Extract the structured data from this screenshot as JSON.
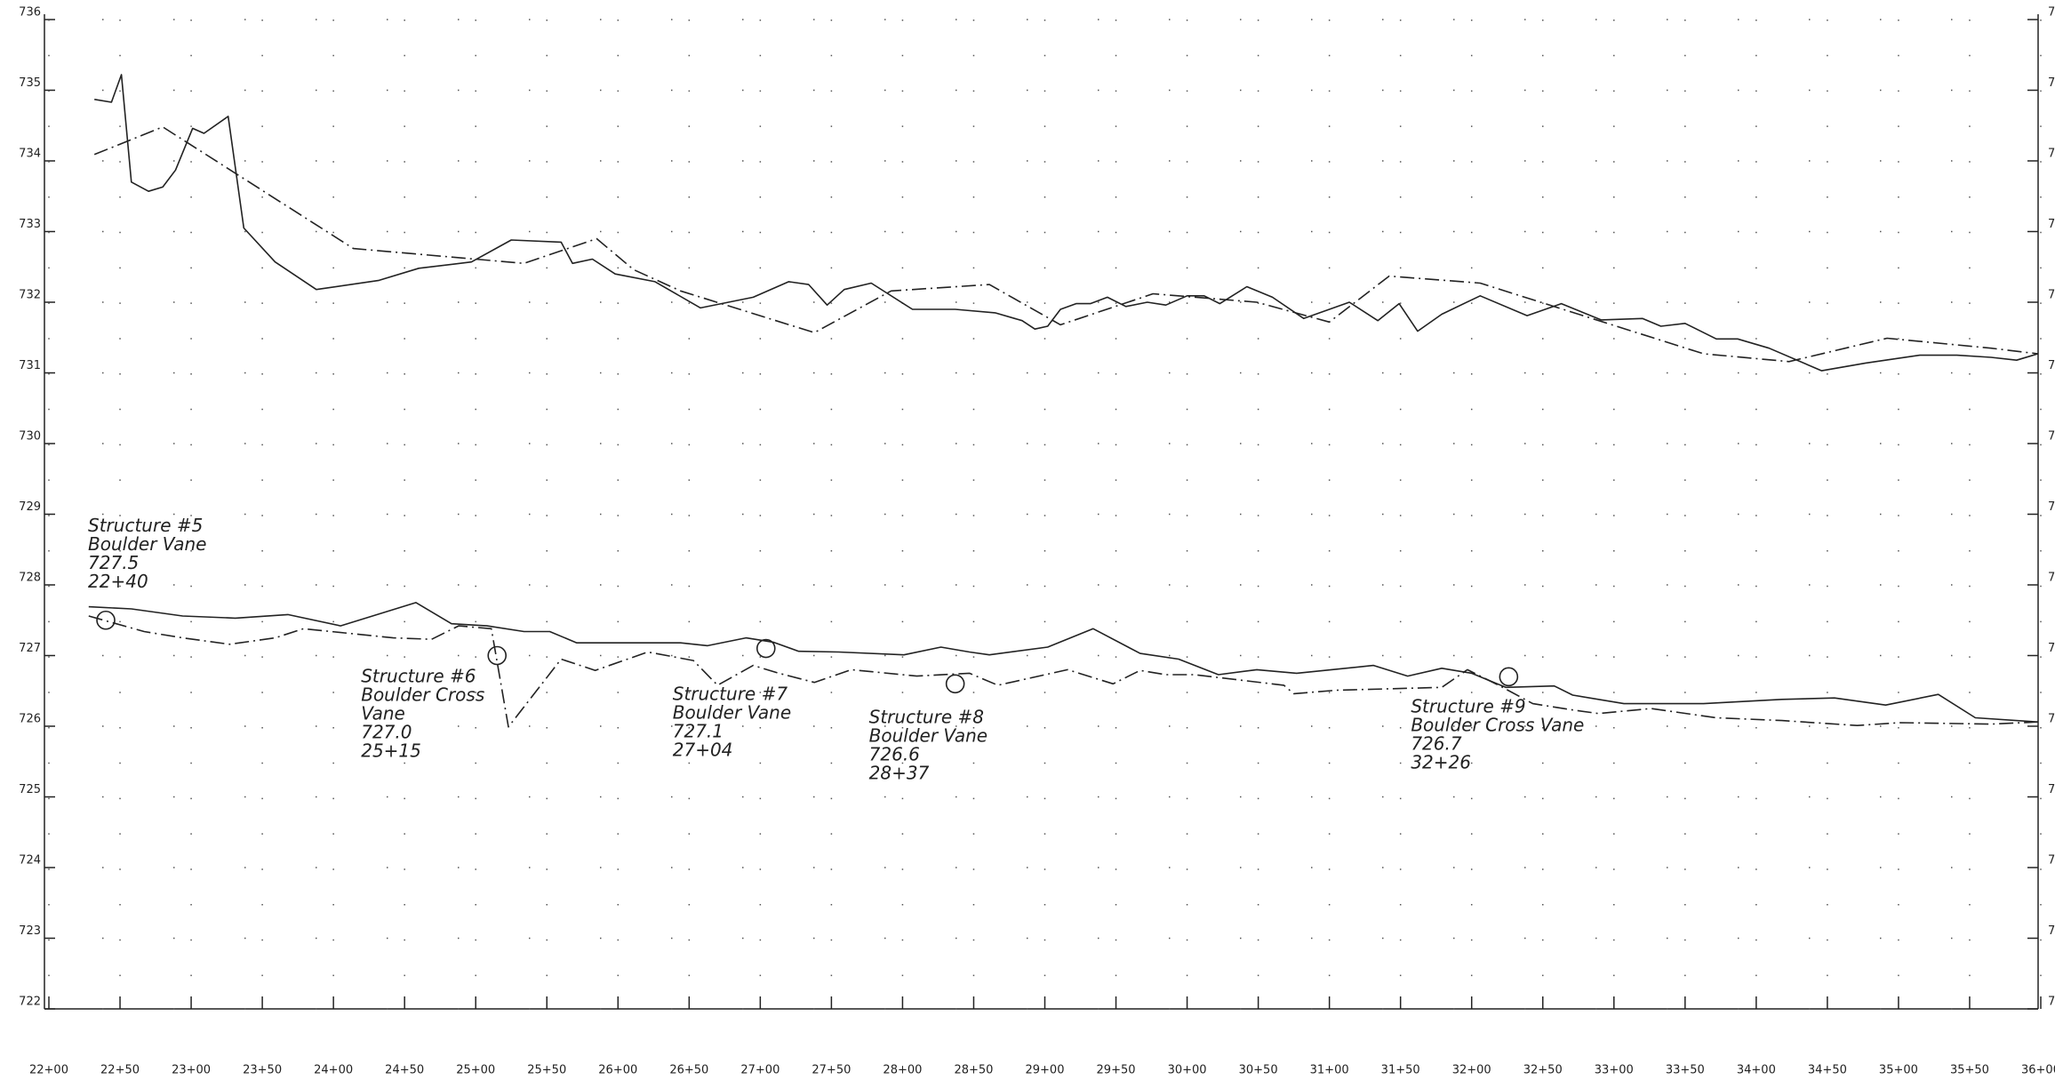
{
  "chart_data": {
    "type": "line",
    "grid": "dotted",
    "color": "#222222",
    "xlim": [
      2200,
      3600
    ],
    "ylim": [
      722,
      736
    ],
    "yticks": [
      722,
      723,
      724,
      725,
      726,
      727,
      728,
      729,
      730,
      731,
      732,
      733,
      734,
      735,
      736
    ],
    "xticks": [
      {
        "value": 2200,
        "label": "22+00"
      },
      {
        "value": 2250,
        "label": "22+50"
      },
      {
        "value": 2300,
        "label": "23+00"
      },
      {
        "value": 2350,
        "label": "23+50"
      },
      {
        "value": 2400,
        "label": "24+00"
      },
      {
        "value": 2450,
        "label": "24+50"
      },
      {
        "value": 2500,
        "label": "25+00"
      },
      {
        "value": 2550,
        "label": "25+50"
      },
      {
        "value": 2600,
        "label": "26+00"
      },
      {
        "value": 2650,
        "label": "26+50"
      },
      {
        "value": 2700,
        "label": "27+00"
      },
      {
        "value": 2750,
        "label": "27+50"
      },
      {
        "value": 2800,
        "label": "28+00"
      },
      {
        "value": 2850,
        "label": "28+50"
      },
      {
        "value": 2900,
        "label": "29+00"
      },
      {
        "value": 2950,
        "label": "29+50"
      },
      {
        "value": 3000,
        "label": "30+00"
      },
      {
        "value": 3050,
        "label": "30+50"
      },
      {
        "value": 3100,
        "label": "31+00"
      },
      {
        "value": 3150,
        "label": "31+50"
      },
      {
        "value": 3200,
        "label": "32+00"
      },
      {
        "value": 3250,
        "label": "32+50"
      },
      {
        "value": 3300,
        "label": "33+00"
      },
      {
        "value": 3350,
        "label": "33+50"
      },
      {
        "value": 3400,
        "label": "34+00"
      },
      {
        "value": 3450,
        "label": "34+50"
      },
      {
        "value": 3500,
        "label": "35+00"
      },
      {
        "value": 3550,
        "label": "35+50"
      },
      {
        "value": 3600,
        "label": "36+00"
      }
    ],
    "series": [
      {
        "color": "#222222",
        "dash": "solid",
        "x": [
          2232,
          2244,
          2251,
          2258,
          2270,
          2280,
          2289,
          2301,
          2309,
          2326,
          2337,
          2359,
          2388,
          2432,
          2460,
          2497,
          2525,
          2560,
          2568,
          2582,
          2598,
          2626,
          2658,
          2695,
          2720,
          2734,
          2747,
          2759,
          2778,
          2807,
          2837,
          2865,
          2884,
          2893,
          2902,
          2911,
          2922,
          2932,
          2944,
          2957,
          2972,
          2985,
          3000,
          3012,
          3023,
          3042,
          3060,
          3082,
          3114,
          3134,
          3149,
          3162,
          3179,
          3206,
          3239,
          3263,
          3291,
          3320,
          3333,
          3350,
          3372,
          3387,
          3409,
          3446,
          3477,
          3515,
          3541,
          3565,
          3583,
          3598
        ],
        "values": [
          734.87,
          734.83,
          735.22,
          733.7,
          733.57,
          733.63,
          733.87,
          734.46,
          734.39,
          734.63,
          733.05,
          732.57,
          732.18,
          732.31,
          732.48,
          732.57,
          732.88,
          732.85,
          732.55,
          732.61,
          732.4,
          732.29,
          731.92,
          732.07,
          732.29,
          732.25,
          731.96,
          732.18,
          732.27,
          731.9,
          731.9,
          731.85,
          731.74,
          731.62,
          731.66,
          731.9,
          731.98,
          731.98,
          732.07,
          731.94,
          732.0,
          731.96,
          732.09,
          732.09,
          731.98,
          732.22,
          732.07,
          731.77,
          732.0,
          731.74,
          731.98,
          731.59,
          731.83,
          732.09,
          731.81,
          731.98,
          731.75,
          731.77,
          731.66,
          731.7,
          731.48,
          731.48,
          731.35,
          731.03,
          731.14,
          731.25,
          731.25,
          731.22,
          731.18,
          731.27
        ]
      },
      {
        "color": "#222222",
        "dash": "dashdot",
        "x": [
          2232,
          2280,
          2414,
          2534,
          2585,
          2611,
          2644,
          2738,
          2792,
          2861,
          2911,
          2976,
          3049,
          3100,
          3142,
          3206,
          3363,
          3423,
          3492,
          3565,
          3598
        ],
        "values": [
          734.09,
          734.48,
          732.76,
          732.55,
          732.9,
          732.46,
          732.16,
          731.57,
          732.16,
          732.25,
          731.68,
          732.12,
          732.0,
          731.72,
          732.37,
          732.27,
          731.27,
          731.16,
          731.49,
          731.35,
          731.27
        ]
      },
      {
        "color": "#222222",
        "dash": "solid",
        "x": [
          2228,
          2258,
          2294,
          2331,
          2368,
          2405,
          2458,
          2483,
          2508,
          2534,
          2552,
          2571,
          2607,
          2644,
          2663,
          2690,
          2709,
          2727,
          2755,
          2801,
          2827,
          2847,
          2861,
          2902,
          2934,
          2967,
          2994,
          3022,
          3049,
          3077,
          3131,
          3155,
          3179,
          3200,
          3224,
          3258,
          3271,
          3307,
          3363,
          3418,
          3455,
          3491,
          3528,
          3554,
          3598
        ],
        "values": [
          727.69,
          727.66,
          727.56,
          727.53,
          727.58,
          727.42,
          727.75,
          727.45,
          727.42,
          727.34,
          727.34,
          727.18,
          727.18,
          727.18,
          727.14,
          727.25,
          727.19,
          727.06,
          727.05,
          727.01,
          727.12,
          727.05,
          727.01,
          727.12,
          727.38,
          727.03,
          726.95,
          726.73,
          726.8,
          726.75,
          726.86,
          726.71,
          726.82,
          726.75,
          726.55,
          726.57,
          726.44,
          726.32,
          726.32,
          726.38,
          726.4,
          726.3,
          726.45,
          726.12,
          726.06
        ]
      },
      {
        "color": "#222222",
        "dash": "dashdot",
        "x": [
          2228,
          2267,
          2294,
          2327,
          2359,
          2379,
          2442,
          2469,
          2488,
          2511,
          2523,
          2560,
          2584,
          2621,
          2653,
          2670,
          2695,
          2713,
          2738,
          2764,
          2810,
          2847,
          2867,
          2916,
          2948,
          2967,
          2985,
          3005,
          3068,
          3075,
          3105,
          3179,
          3197,
          3219,
          3243,
          3271,
          3289,
          3326,
          3372,
          3418,
          3471,
          3501,
          3565,
          3598
        ],
        "values": [
          727.56,
          727.34,
          727.25,
          727.16,
          727.25,
          727.38,
          727.25,
          727.23,
          727.42,
          727.38,
          725.99,
          726.95,
          726.79,
          727.05,
          726.93,
          726.58,
          726.86,
          726.75,
          726.62,
          726.8,
          726.71,
          726.75,
          726.58,
          726.8,
          726.6,
          726.79,
          726.73,
          726.73,
          726.58,
          726.46,
          726.51,
          726.55,
          726.8,
          726.58,
          726.32,
          726.23,
          726.18,
          726.25,
          726.12,
          726.08,
          726.01,
          726.05,
          726.03,
          726.06
        ]
      }
    ],
    "annotations": [
      {
        "x": 2240,
        "y": 727.5,
        "lines": [
          "Structure #5",
          "Boulder Vane",
          "727.5",
          "22+40"
        ]
      },
      {
        "x": 2515,
        "y": 727.0,
        "lines": [
          "Structure #6",
          "Boulder Cross",
          "Vane",
          "727.0",
          "25+15"
        ]
      },
      {
        "x": 2704,
        "y": 727.1,
        "lines": [
          "Structure #7",
          "Boulder Vane",
          "727.1",
          "27+04"
        ]
      },
      {
        "x": 2837,
        "y": 726.6,
        "lines": [
          "Structure #8",
          "Boulder Vane",
          "726.6",
          "28+37"
        ]
      },
      {
        "x": 3226,
        "y": 726.7,
        "lines": [
          "Structure #9",
          "Boulder Cross Vane",
          "726.7",
          "32+26"
        ]
      }
    ]
  }
}
